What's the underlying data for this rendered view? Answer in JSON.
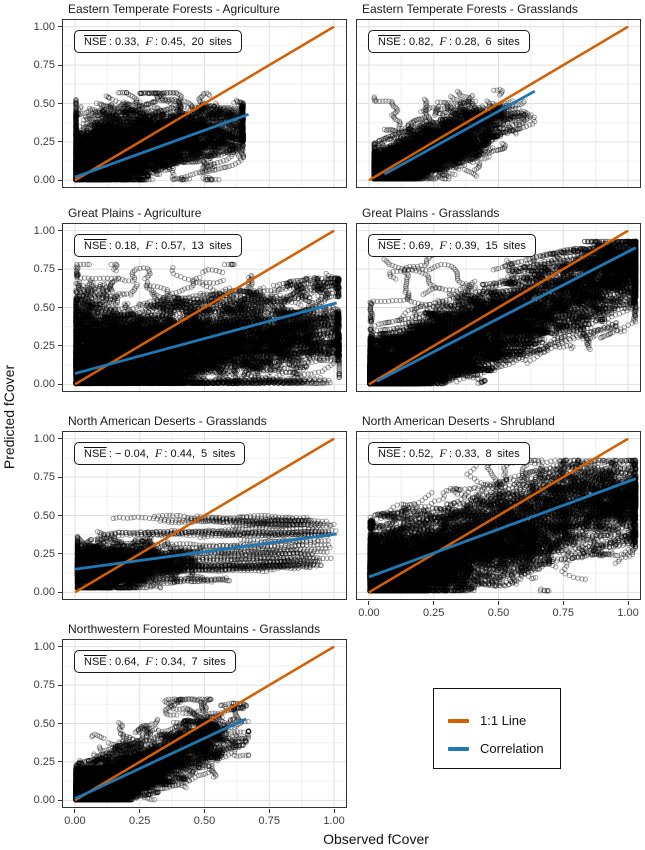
{
  "figure": {
    "x_axis_title": "Observed fCover",
    "y_axis_title": "Predicted fCover",
    "tick_labels": [
      "0.00",
      "0.25",
      "0.50",
      "0.75",
      "1.00"
    ],
    "tick_values": [
      0,
      0.25,
      0.5,
      0.75,
      1
    ]
  },
  "colors": {
    "identity_line": "#D55E00",
    "correlation_line": "#1F77B4",
    "grid_major": "#E0E0E0",
    "grid_minor": "#F0F0F0",
    "panel_border": "#333333",
    "point_stroke": "rgba(0,0,0,0.38)"
  },
  "stat_labels": {
    "nse": "NSE",
    "f": "F"
  },
  "legend": {
    "items": [
      {
        "label": "1:1 Line",
        "color": "#D55E00"
      },
      {
        "label": "Correlation",
        "color": "#1F77B4"
      }
    ]
  },
  "chart_data": [
    {
      "type": "scatter",
      "title": "Eastern Temperate Forests - Agriculture",
      "stats": {
        "nse": "0.33",
        "f": "0.45",
        "sites": "20",
        "nse_part": " : 0.33,",
        "f_part": " : 0.45,",
        "sites_part": "20 sites"
      },
      "xlim": [
        0,
        1
      ],
      "ylim": [
        0,
        1
      ],
      "identity_line": {
        "x1": 0,
        "y1": 0,
        "x2": 1,
        "y2": 1
      },
      "correlation_line": {
        "x1": 0.0,
        "y1": 0.02,
        "x2": 0.67,
        "y2": 0.43
      },
      "point_cloud_model": {
        "seed": 11,
        "walks": 230,
        "steps": 45,
        "step": 0.012,
        "turn": 0.55,
        "aniso": 0.65,
        "pull": 0.03,
        "a": 0.1,
        "b": 0.45,
        "sig_y": 0.15,
        "x0": 0.01,
        "x_scale": 0.22,
        "x_mix": {
          "frac": 0.4,
          "min": 0.02,
          "max": 0.58
        },
        "clamp": {
          "x0": 0.004,
          "x1": 0.65,
          "y0": 0.004,
          "y1": 0.57
        },
        "blobs": [
          {
            "cx": 0.2,
            "cy": 0.25,
            "sx": 0.14,
            "sy": 0.12,
            "n": 3000
          },
          {
            "cx": 0.1,
            "cy": 0.08,
            "sx": 0.08,
            "sy": 0.06,
            "n": 1000
          }
        ],
        "loops": [
          {
            "cx": 0.33,
            "cy": 0.52,
            "sx": 0.1,
            "sy": 0.03,
            "n": 4,
            "steps": 35
          }
        ]
      }
    },
    {
      "type": "scatter",
      "title": "Eastern Temperate Forests - Grasslands",
      "stats": {
        "nse": "0.82",
        "f": "0.28",
        "sites": "6",
        "nse_part": " : 0.82,",
        "f_part": " : 0.28,",
        "sites_part": "6 sites"
      },
      "xlim": [
        0,
        1
      ],
      "ylim": [
        0,
        1
      ],
      "identity_line": {
        "x1": 0,
        "y1": 0,
        "x2": 1,
        "y2": 1
      },
      "correlation_line": {
        "x1": 0.06,
        "y1": 0.04,
        "x2": 0.64,
        "y2": 0.58
      },
      "point_cloud_model": {
        "seed": 22,
        "walks": 170,
        "steps": 45,
        "step": 0.012,
        "turn": 0.6,
        "aniso": 0.7,
        "pull": 0.045,
        "a": 0.0,
        "b": 0.9,
        "sig_y": 0.07,
        "x0": 0.05,
        "x_scale": 0.13,
        "clamp": {
          "x0": 0.02,
          "x1": 0.64,
          "y0": 0.01,
          "y1": 0.6
        },
        "blobs": [
          {
            "cx": 0.1,
            "cy": 0.07,
            "sx": 0.05,
            "sy": 0.05,
            "n": 2500
          },
          {
            "cx": 0.2,
            "cy": 0.15,
            "sx": 0.07,
            "sy": 0.06,
            "n": 900
          },
          {
            "cx": 0.3,
            "cy": 0.27,
            "sx": 0.08,
            "sy": 0.07,
            "n": 1000
          },
          {
            "cx": 0.45,
            "cy": 0.42,
            "sx": 0.07,
            "sy": 0.06,
            "n": 600
          }
        ],
        "loops": [
          {
            "cx": 0.17,
            "cy": 0.3,
            "sx": 0.04,
            "sy": 0.03,
            "n": 3,
            "steps": 28
          }
        ]
      }
    },
    {
      "type": "scatter",
      "title": "Great Plains - Agriculture",
      "stats": {
        "nse": "0.18",
        "f": "0.57",
        "sites": "13",
        "nse_part": " : 0.18,",
        "f_part": " : 0.57,",
        "sites_part": "13 sites"
      },
      "xlim": [
        0,
        1
      ],
      "ylim": [
        0,
        1
      ],
      "identity_line": {
        "x1": 0,
        "y1": 0,
        "x2": 1,
        "y2": 1
      },
      "correlation_line": {
        "x1": 0.0,
        "y1": 0.07,
        "x2": 1.01,
        "y2": 0.53
      },
      "point_cloud_model": {
        "seed": 33,
        "walks": 280,
        "steps": 55,
        "step": 0.015,
        "turn": 0.5,
        "aniso": 0.6,
        "pull": 0.02,
        "a": 0.07,
        "b": 0.38,
        "sig_y": 0.18,
        "x0": 0.01,
        "x_scale": 0.22,
        "x_mix": {
          "frac": 0.45,
          "min": 0.03,
          "max": 0.98
        },
        "clamp": {
          "x0": 0.004,
          "x1": 1.02,
          "y0": 0.006,
          "y1": 0.78
        },
        "bands": [
          {
            "y": 0.012,
            "x0": 0.02,
            "x1": 1.0,
            "n": 14
          }
        ],
        "blobs": [
          {
            "cx": 0.06,
            "cy": 0.18,
            "sx": 0.05,
            "sy": 0.13,
            "n": 1500
          },
          {
            "cx": 0.06,
            "cy": 0.45,
            "sx": 0.04,
            "sy": 0.1,
            "n": 500
          },
          {
            "cx": 0.25,
            "cy": 0.25,
            "sx": 0.15,
            "sy": 0.15,
            "n": 1800
          },
          {
            "cx": 0.55,
            "cy": 0.35,
            "sx": 0.2,
            "sy": 0.15,
            "n": 1300
          },
          {
            "cx": 0.7,
            "cy": 0.3,
            "sx": 0.15,
            "sy": 0.12,
            "n": 800
          }
        ],
        "loops": [
          {
            "cx": 0.6,
            "cy": 0.68,
            "sx": 0.2,
            "sy": 0.05,
            "n": 6,
            "steps": 45
          }
        ]
      }
    },
    {
      "type": "scatter",
      "title": "Great Plains - Grasslands",
      "stats": {
        "nse": "0.69",
        "f": "0.39",
        "sites": "15",
        "nse_part": " : 0.69,",
        "f_part": " : 0.39,",
        "sites_part": "15 sites"
      },
      "xlim": [
        0,
        1
      ],
      "ylim": [
        0,
        1
      ],
      "identity_line": {
        "x1": 0,
        "y1": 0,
        "x2": 1,
        "y2": 1
      },
      "correlation_line": {
        "x1": 0.03,
        "y1": 0.02,
        "x2": 1.03,
        "y2": 0.89
      },
      "point_cloud_model": {
        "seed": 44,
        "walks": 320,
        "steps": 50,
        "step": 0.015,
        "turn": 0.5,
        "aniso": 0.6,
        "pull": 0.03,
        "a": 0.03,
        "b": 0.75,
        "sig_y": 0.15,
        "x0": 0.02,
        "x_scale": 0.3,
        "x_mix": {
          "frac": 0.5,
          "min": 0.05,
          "max": 1.0
        },
        "clamp": {
          "x0": 0.004,
          "x1": 1.03,
          "y0": 0.004,
          "y1": 0.93
        },
        "blobs": [
          {
            "cx": 0.07,
            "cy": 0.06,
            "sx": 0.05,
            "sy": 0.05,
            "n": 3000
          },
          {
            "cx": 0.5,
            "cy": 0.4,
            "sx": 0.15,
            "sy": 0.1,
            "n": 1200
          },
          {
            "cx": 0.85,
            "cy": 0.68,
            "sx": 0.1,
            "sy": 0.09,
            "n": 900
          },
          {
            "cx": 0.97,
            "cy": 0.8,
            "sx": 0.05,
            "sy": 0.07,
            "n": 1000
          }
        ],
        "loops": [
          {
            "cx": 0.25,
            "cy": 0.6,
            "sx": 0.1,
            "sy": 0.07,
            "n": 5,
            "steps": 40
          }
        ]
      }
    },
    {
      "type": "scatter",
      "title": "North American Deserts - Grasslands",
      "stats": {
        "nse": "-0.04",
        "f": "0.44",
        "sites": "5",
        "nse_part": " : − 0.04,",
        "f_part": " : 0.44,",
        "sites_part": "5 sites"
      },
      "xlim": [
        0,
        1
      ],
      "ylim": [
        0,
        1
      ],
      "identity_line": {
        "x1": 0,
        "y1": 0,
        "x2": 1,
        "y2": 1
      },
      "correlation_line": {
        "x1": 0.0,
        "y1": 0.15,
        "x2": 1.01,
        "y2": 0.38
      },
      "point_cloud_model": {
        "seed": 55,
        "walks": 90,
        "steps": 40,
        "step": 0.011,
        "turn": 0.6,
        "aniso": 0.5,
        "pull": 0.03,
        "a": 0.16,
        "b": 0.08,
        "sig_y": 0.06,
        "x0": 0.02,
        "x_scale": 0.1,
        "clamp": {
          "x0": 0.01,
          "x1": 1.0,
          "y0": 0.03,
          "y1": 0.5
        },
        "bands": [
          {
            "y": 0.48,
            "x0": 0.12,
            "x1": 1.0,
            "n": 7
          },
          {
            "y": 0.44,
            "x0": 0.35,
            "x1": 1.0,
            "n": 4
          },
          {
            "y": 0.37,
            "x0": 0.08,
            "x1": 1.0,
            "n": 8
          },
          {
            "y": 0.3,
            "x0": 0.3,
            "x1": 1.0,
            "n": 4
          },
          {
            "y": 0.25,
            "x0": 0.25,
            "x1": 1.0,
            "n": 5
          },
          {
            "y": 0.2,
            "x0": 0.02,
            "x1": 1.0,
            "n": 8
          },
          {
            "y": 0.18,
            "x0": 0.5,
            "x1": 1.0,
            "n": 5
          },
          {
            "y": 0.14,
            "x0": 0.05,
            "x1": 0.85,
            "n": 5
          },
          {
            "y": 0.09,
            "x0": 0.02,
            "x1": 0.6,
            "n": 4
          }
        ],
        "blobs": [
          {
            "cx": 0.1,
            "cy": 0.16,
            "sx": 0.08,
            "sy": 0.07,
            "n": 2600
          },
          {
            "cx": 0.25,
            "cy": 0.2,
            "sx": 0.1,
            "sy": 0.05,
            "n": 1200
          }
        ]
      }
    },
    {
      "type": "scatter",
      "title": "North American Deserts - Shrubland",
      "stats": {
        "nse": "0.52",
        "f": "0.33",
        "sites": "8",
        "nse_part": " : 0.52,",
        "f_part": " : 0.33,",
        "sites_part": "8 sites"
      },
      "xlim": [
        0,
        1
      ],
      "ylim": [
        0,
        1
      ],
      "identity_line": {
        "x1": 0,
        "y1": 0,
        "x2": 1,
        "y2": 1
      },
      "correlation_line": {
        "x1": 0.0,
        "y1": 0.1,
        "x2": 1.03,
        "y2": 0.74
      },
      "point_cloud_model": {
        "seed": 66,
        "walks": 280,
        "steps": 55,
        "step": 0.017,
        "turn": 0.7,
        "aniso": 0.7,
        "pull": 0.02,
        "a": 0.09,
        "b": 0.56,
        "sig_y": 0.17,
        "x0": 0.02,
        "x_scale": 0.26,
        "x_mix": {
          "frac": 0.55,
          "min": 0.04,
          "max": 1.0
        },
        "clamp": {
          "x0": 0.004,
          "x1": 1.03,
          "y0": 0.01,
          "y1": 0.86
        },
        "blobs": [
          {
            "cx": 0.1,
            "cy": 0.12,
            "sx": 0.07,
            "sy": 0.07,
            "n": 1500
          },
          {
            "cx": 0.45,
            "cy": 0.32,
            "sx": 0.12,
            "sy": 0.1,
            "n": 1100
          },
          {
            "cx": 0.8,
            "cy": 0.55,
            "sx": 0.12,
            "sy": 0.1,
            "n": 900
          },
          {
            "cx": 0.92,
            "cy": 0.65,
            "sx": 0.07,
            "sy": 0.07,
            "n": 400
          }
        ],
        "loops": [
          {
            "cx": 0.7,
            "cy": 0.72,
            "sx": 0.15,
            "sy": 0.06,
            "n": 6,
            "steps": 45
          }
        ]
      }
    },
    {
      "type": "scatter",
      "title": "Northwestern Forested Mountains - Grasslands",
      "stats": {
        "nse": "0.64",
        "f": "0.34",
        "sites": "7",
        "nse_part": " : 0.64,",
        "f_part": " : 0.34,",
        "sites_part": "7 sites"
      },
      "xlim": [
        0,
        1
      ],
      "ylim": [
        0,
        1
      ],
      "identity_line": {
        "x1": 0,
        "y1": 0,
        "x2": 1,
        "y2": 1
      },
      "correlation_line": {
        "x1": 0.0,
        "y1": 0.01,
        "x2": 0.66,
        "y2": 0.53
      },
      "point_cloud_model": {
        "seed": 77,
        "walks": 210,
        "steps": 45,
        "step": 0.012,
        "turn": 0.6,
        "aniso": 0.7,
        "pull": 0.04,
        "a": 0.02,
        "b": 0.75,
        "sig_y": 0.11,
        "x0": 0.02,
        "x_scale": 0.18,
        "clamp": {
          "x0": 0.004,
          "x1": 0.67,
          "y0": 0.004,
          "y1": 0.66
        },
        "blobs": [
          {
            "cx": 0.08,
            "cy": 0.07,
            "sx": 0.06,
            "sy": 0.05,
            "n": 2600
          },
          {
            "cx": 0.3,
            "cy": 0.27,
            "sx": 0.09,
            "sy": 0.08,
            "n": 900
          },
          {
            "cx": 0.45,
            "cy": 0.4,
            "sx": 0.08,
            "sy": 0.07,
            "n": 500
          },
          {
            "cx": 0.5,
            "cy": 0.45,
            "sx": 0.06,
            "sy": 0.06,
            "n": 400
          }
        ],
        "loops": [
          {
            "cx": 0.43,
            "cy": 0.56,
            "sx": 0.08,
            "sy": 0.04,
            "n": 4,
            "steps": 35
          }
        ]
      }
    }
  ]
}
